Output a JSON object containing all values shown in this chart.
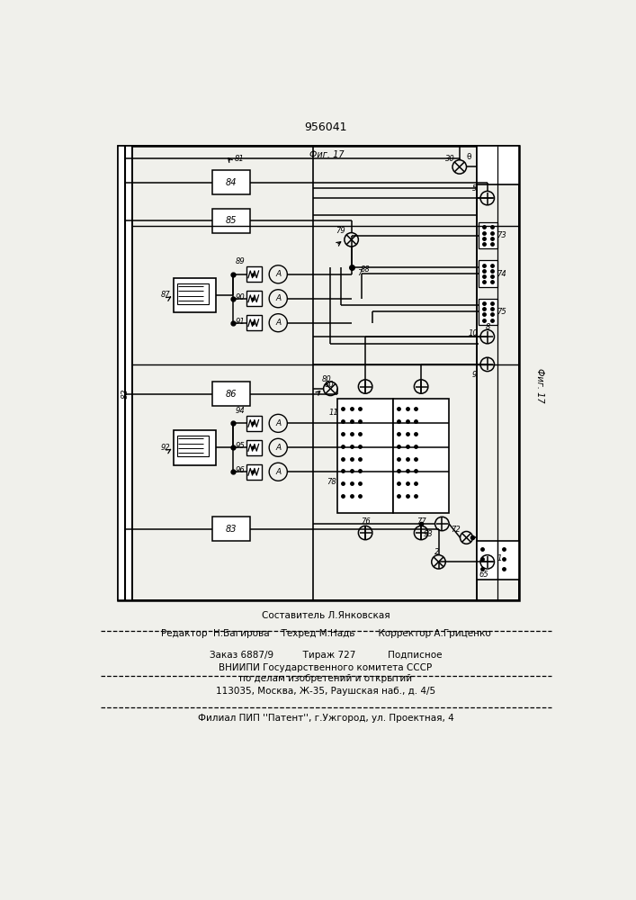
{
  "title": "956041",
  "bg_color": "#f0f0eb",
  "fig17_top": "Фиг. 17",
  "fig17_right": "Фиг. 17",
  "line1": "Составитель Л.Янковская",
  "line2": "Редактор  Н.Багирова    Техред М.Надь        Корректор А.Гриценко",
  "line3": "Заказ 6887/9          Тираж 727           Подписное",
  "line4": "ВНИИПИ Государственного комитета СССР",
  "line5": "по делам изобретений и открытий",
  "line6": "113035, Москва, Ж-35, Раушская наб., д. 4/5",
  "line7": "Филиал ПИП ''Патент'', г.Ужгород, ул. Проектная, 4"
}
